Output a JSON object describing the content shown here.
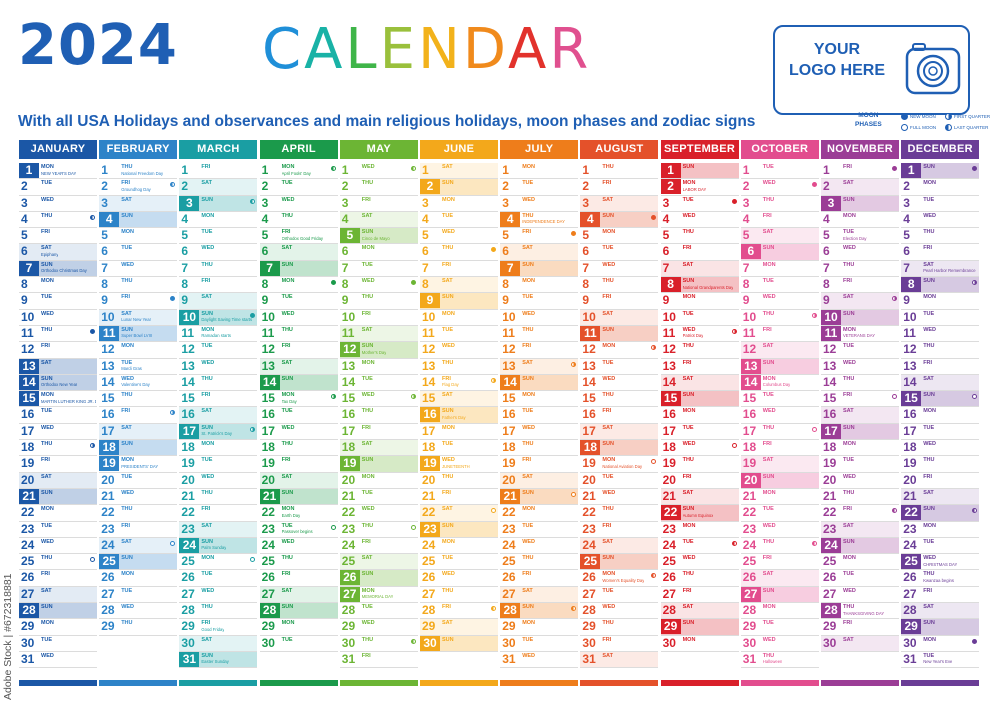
{
  "header": {
    "year": "2024",
    "title_letters": [
      {
        "ch": "C",
        "color": "#1f8fd8"
      },
      {
        "ch": "A",
        "color": "#19b2a6"
      },
      {
        "ch": "L",
        "color": "#3fb549"
      },
      {
        "ch": "E",
        "color": "#9ac03c"
      },
      {
        "ch": "N",
        "color": "#f2b21b"
      },
      {
        "ch": "D",
        "color": "#f08a1c"
      },
      {
        "ch": "A",
        "color": "#e2322c"
      },
      {
        "ch": "R",
        "color": "#e0508f"
      }
    ],
    "subtitle": "With all USA Holidays and observances and main religious holidays, moon phases and zodiac signs"
  },
  "logo": {
    "line1": "YOUR",
    "line2": "LOGO HERE",
    "icon": "camera-icon",
    "color": "#1f5fb4"
  },
  "moon_legend": {
    "title_line1": "MOON",
    "title_line2": "PHASES",
    "new_moon": "NEW MOON",
    "first_quarter": "FIRST QUARTER",
    "full_moon": "FULL MOON",
    "last_quarter": "LAST QUARTER"
  },
  "watermark": "Adobe Stock | #672318881",
  "months": [
    {
      "name": "JANUARY",
      "color": "#1b57a6",
      "start": 1,
      "days": 31,
      "holidays": [
        1,
        7,
        13,
        14,
        15,
        21,
        28
      ],
      "notes": {
        "1": "NEW YEAR'S DAY",
        "6": "Epiphany",
        "7": "Orthodox Christmas Day",
        "14": "Orthodox New Year",
        "15": "MARTIN LUTHER KING JR. DAY"
      },
      "moons": {
        "4": "lq",
        "11": "new",
        "18": "fq",
        "25": "full"
      }
    },
    {
      "name": "FEBRUARY",
      "color": "#2d83c8",
      "start": 4,
      "days": 29,
      "holidays": [
        4,
        11,
        18,
        19,
        25
      ],
      "notes": {
        "1": "National Freedom Day",
        "2": "Groundhog Day",
        "10": "Lunar New Year",
        "11": "Super Bowl LVIII",
        "13": "Mardi Gras",
        "14": "Valentine's Day",
        "19": "PRESIDENTS' DAY"
      },
      "moons": {
        "2": "lq",
        "9": "new",
        "16": "fq",
        "24": "full"
      }
    },
    {
      "name": "MARCH",
      "color": "#1a9ea3",
      "start": 5,
      "days": 31,
      "holidays": [
        3,
        10,
        17,
        24,
        31
      ],
      "notes": {
        "10": "Daylight Saving Time starts",
        "11": "Ramadan starts",
        "17": "St. Patrick's Day",
        "24": "Palm Sunday",
        "29": "Good Friday",
        "31": "Easter Sunday"
      },
      "moons": {
        "3": "lq",
        "10": "new",
        "17": "fq",
        "25": "full"
      }
    },
    {
      "name": "APRIL",
      "color": "#1b9a4b",
      "start": 1,
      "days": 30,
      "holidays": [
        7,
        14,
        21,
        28
      ],
      "notes": {
        "1": "April Fools' Day",
        "5": "Orthodox Good Friday",
        "15": "Tax Day",
        "22": "Earth Day",
        "23": "Passover begins"
      },
      "moons": {
        "1": "lq",
        "8": "new",
        "15": "fq",
        "23": "full"
      }
    },
    {
      "name": "MAY",
      "color": "#6cb534",
      "start": 3,
      "days": 31,
      "holidays": [
        5,
        12,
        19,
        26,
        27
      ],
      "notes": {
        "5": "Cinco de Mayo",
        "12": "Mother's Day",
        "27": "MEMORIAL DAY"
      },
      "moons": {
        "1": "lq",
        "8": "new",
        "15": "fq",
        "23": "full",
        "30": "lq"
      }
    },
    {
      "name": "JUNE",
      "color": "#f3a81b",
      "start": 6,
      "days": 30,
      "holidays": [
        2,
        9,
        16,
        19,
        23,
        30
      ],
      "notes": {
        "14": "Flag Day",
        "16": "Father's Day",
        "19": "JUNETEENTH"
      },
      "moons": {
        "6": "new",
        "14": "fq",
        "22": "full",
        "28": "lq"
      }
    },
    {
      "name": "JULY",
      "color": "#ee7d1b",
      "start": 1,
      "days": 31,
      "holidays": [
        4,
        7,
        14,
        21,
        28
      ],
      "notes": {
        "4": "INDEPENDENCE DAY"
      },
      "moons": {
        "5": "new",
        "13": "fq",
        "21": "full",
        "28": "lq"
      }
    },
    {
      "name": "AUGUST",
      "color": "#e4512a",
      "start": 4,
      "days": 31,
      "holidays": [
        4,
        11,
        18,
        25
      ],
      "notes": {
        "19": "National Aviation Day",
        "26": "Women's Equality Day"
      },
      "moons": {
        "4": "new",
        "12": "fq",
        "19": "full",
        "26": "lq"
      }
    },
    {
      "name": "SEPTEMBER",
      "color": "#d9202a",
      "start": 7,
      "days": 30,
      "holidays": [
        1,
        2,
        8,
        15,
        22,
        29
      ],
      "notes": {
        "2": "LABOR DAY",
        "8": "National Grandparents Day",
        "11": "Patriot Day",
        "22": "Autumn Equinox"
      },
      "moons": {
        "3": "new",
        "11": "fq",
        "18": "full",
        "24": "lq"
      }
    },
    {
      "name": "OCTOBER",
      "color": "#e24d8e",
      "start": 2,
      "days": 31,
      "holidays": [
        6,
        13,
        14,
        20,
        27
      ],
      "notes": {
        "14": "Columbus Day",
        "31": "Halloween"
      },
      "moons": {
        "2": "new",
        "10": "fq",
        "17": "full",
        "24": "lq"
      }
    },
    {
      "name": "NOVEMBER",
      "color": "#9b3d96",
      "start": 5,
      "days": 30,
      "holidays": [
        3,
        10,
        11,
        17,
        24,
        28
      ],
      "notes": {
        "5": "Election Day",
        "11": "VETERANS DAY",
        "28": "THANKSGIVING DAY"
      },
      "moons": {
        "1": "new",
        "9": "fq",
        "15": "full",
        "22": "lq"
      }
    },
    {
      "name": "DECEMBER",
      "color": "#6a3d96",
      "start": 7,
      "days": 31,
      "holidays": [
        1,
        8,
        15,
        22,
        25,
        29
      ],
      "notes": {
        "7": "Pearl Harbor Remembrance",
        "25": "CHRISTMAS DAY",
        "26": "Kwanzaa begins",
        "31": "New Year's Eve"
      },
      "moons": {
        "1": "new",
        "8": "fq",
        "15": "full",
        "22": "lq",
        "30": "new"
      }
    }
  ],
  "weekdays": [
    "MON",
    "TUE",
    "WED",
    "THU",
    "FRI",
    "SAT",
    "SUN"
  ]
}
